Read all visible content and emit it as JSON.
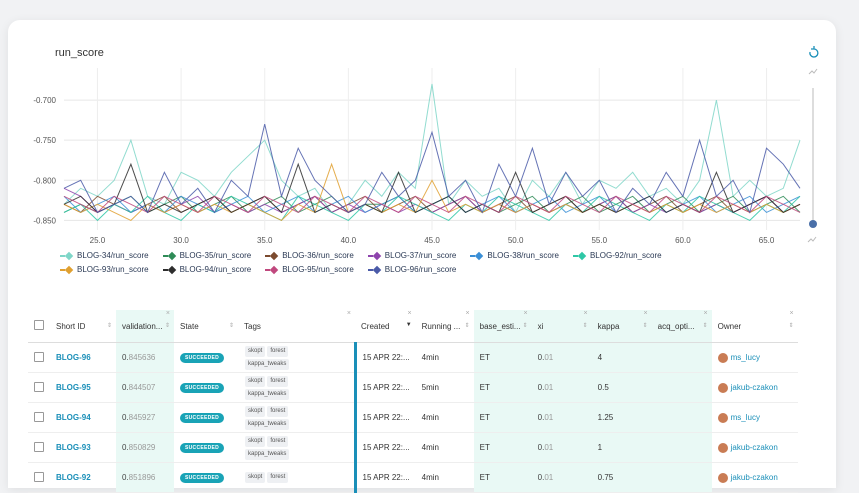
{
  "chart": {
    "title": "run_score",
    "y_ticks": [
      "-0.700",
      "-0.750",
      "-0.800",
      "-0.850"
    ],
    "x_ticks": [
      "25.0",
      "30.0",
      "35.0",
      "40.0",
      "45.0",
      "50.0",
      "55.0",
      "60.0",
      "65.0"
    ]
  },
  "legend": [
    {
      "label": "BLOG-34/run_score",
      "color": "#7fd6c8"
    },
    {
      "label": "BLOG-35/run_score",
      "color": "#2e8b57"
    },
    {
      "label": "BLOG-36/run_score",
      "color": "#7b4a2e"
    },
    {
      "label": "BLOG-37/run_score",
      "color": "#8e44ad"
    },
    {
      "label": "BLOG-38/run_score",
      "color": "#3a8fd6"
    },
    {
      "label": "BLOG-92/run_score",
      "color": "#2ec7a6"
    },
    {
      "label": "BLOG-93/run_score",
      "color": "#e0a030"
    },
    {
      "label": "BLOG-94/run_score",
      "color": "#2d2d2d"
    },
    {
      "label": "BLOG-95/run_score",
      "color": "#c0487e"
    },
    {
      "label": "BLOG-96/run_score",
      "color": "#4a5aa8"
    }
  ],
  "chart_data": {
    "type": "line",
    "title": "run_score",
    "xlabel": "",
    "ylabel": "",
    "xlim": [
      23,
      67
    ],
    "ylim": [
      -0.862,
      -0.66
    ],
    "series": [
      {
        "name": "BLOG-34/run_score",
        "color": "#7fd6c8",
        "x": [
          23,
          24,
          25,
          26,
          27,
          28,
          29,
          30,
          31,
          32,
          33,
          34,
          35,
          36,
          37,
          38,
          39,
          40,
          41,
          42,
          43,
          44,
          45,
          46,
          47,
          48,
          49,
          50,
          51,
          52,
          53,
          54,
          55,
          56,
          57,
          58,
          59,
          60,
          61,
          62,
          63,
          64,
          65,
          66,
          67
        ],
        "y": [
          -0.83,
          -0.81,
          -0.82,
          -0.8,
          -0.75,
          -0.82,
          -0.83,
          -0.79,
          -0.8,
          -0.82,
          -0.79,
          -0.77,
          -0.75,
          -0.8,
          -0.82,
          -0.81,
          -0.84,
          -0.83,
          -0.8,
          -0.82,
          -0.79,
          -0.81,
          -0.68,
          -0.83,
          -0.8,
          -0.82,
          -0.81,
          -0.84,
          -0.8,
          -0.82,
          -0.79,
          -0.83,
          -0.8,
          -0.81,
          -0.79,
          -0.82,
          -0.81,
          -0.83,
          -0.8,
          -0.7,
          -0.82,
          -0.8,
          -0.82,
          -0.81,
          -0.75
        ]
      },
      {
        "name": "BLOG-35/run_score",
        "color": "#2e8b57",
        "x": [
          23,
          24,
          25,
          26,
          27,
          28,
          29,
          30,
          31,
          32,
          33,
          34,
          35,
          36,
          37,
          38,
          39,
          40,
          41,
          42,
          43,
          44,
          45,
          46,
          47,
          48,
          49,
          50,
          51,
          52,
          53,
          54,
          55,
          56,
          57,
          58,
          59,
          60,
          61,
          62,
          63,
          64,
          65,
          66,
          67
        ],
        "y": [
          -0.84,
          -0.83,
          -0.84,
          -0.83,
          -0.82,
          -0.84,
          -0.83,
          -0.82,
          -0.84,
          -0.83,
          -0.82,
          -0.84,
          -0.83,
          -0.82,
          -0.84,
          -0.83,
          -0.82,
          -0.84,
          -0.83,
          -0.83,
          -0.82,
          -0.84,
          -0.83,
          -0.82,
          -0.84,
          -0.83,
          -0.84,
          -0.83,
          -0.82,
          -0.84,
          -0.83,
          -0.82,
          -0.84,
          -0.83,
          -0.82,
          -0.84,
          -0.83,
          -0.82,
          -0.84,
          -0.83,
          -0.82,
          -0.84,
          -0.83,
          -0.82,
          -0.84
        ]
      },
      {
        "name": "BLOG-36/run_score",
        "color": "#7b4a2e",
        "x": [
          23,
          24,
          25,
          26,
          27,
          28,
          29,
          30,
          31,
          32,
          33,
          34,
          35,
          36,
          37,
          38,
          39,
          40,
          41,
          42,
          43,
          44,
          45,
          46,
          47,
          48,
          49,
          50,
          51,
          52,
          53,
          54,
          55,
          56,
          57,
          58,
          59,
          60,
          61,
          62,
          63,
          64,
          65,
          66,
          67
        ],
        "y": [
          -0.83,
          -0.84,
          -0.82,
          -0.83,
          -0.84,
          -0.83,
          -0.82,
          -0.84,
          -0.83,
          -0.82,
          -0.84,
          -0.83,
          -0.82,
          -0.84,
          -0.83,
          -0.82,
          -0.84,
          -0.83,
          -0.82,
          -0.84,
          -0.83,
          -0.82,
          -0.84,
          -0.83,
          -0.82,
          -0.84,
          -0.83,
          -0.82,
          -0.84,
          -0.83,
          -0.82,
          -0.84,
          -0.83,
          -0.82,
          -0.84,
          -0.83,
          -0.82,
          -0.84,
          -0.83,
          -0.82,
          -0.84,
          -0.83,
          -0.82,
          -0.84,
          -0.83
        ]
      },
      {
        "name": "BLOG-37/run_score",
        "color": "#8e44ad",
        "x": [
          23,
          24,
          25,
          26,
          27,
          28,
          29,
          30,
          31,
          32,
          33,
          34,
          35,
          36,
          37,
          38,
          39,
          40,
          41,
          42,
          43,
          44,
          45,
          46,
          47,
          48,
          49,
          50,
          51,
          52,
          53,
          54,
          55,
          56,
          57,
          58,
          59,
          60,
          61,
          62,
          63,
          64,
          65,
          66,
          67
        ],
        "y": [
          -0.81,
          -0.82,
          -0.84,
          -0.83,
          -0.84,
          -0.83,
          -0.84,
          -0.83,
          -0.82,
          -0.84,
          -0.83,
          -0.84,
          -0.83,
          -0.84,
          -0.83,
          -0.82,
          -0.84,
          -0.83,
          -0.84,
          -0.83,
          -0.84,
          -0.83,
          -0.84,
          -0.83,
          -0.82,
          -0.84,
          -0.83,
          -0.84,
          -0.83,
          -0.84,
          -0.83,
          -0.84,
          -0.83,
          -0.82,
          -0.84,
          -0.83,
          -0.84,
          -0.83,
          -0.84,
          -0.83,
          -0.84,
          -0.83,
          -0.82,
          -0.84,
          -0.83
        ]
      },
      {
        "name": "BLOG-38/run_score",
        "color": "#3a8fd6",
        "x": [
          23,
          24,
          25,
          26,
          27,
          28,
          29,
          30,
          31,
          32,
          33,
          34,
          35,
          36,
          37,
          38,
          39,
          40,
          41,
          42,
          43,
          44,
          45,
          46,
          47,
          48,
          49,
          50,
          51,
          52,
          53,
          54,
          55,
          56,
          57,
          58,
          59,
          60,
          61,
          62,
          63,
          64,
          65,
          66,
          67
        ],
        "y": [
          -0.82,
          -0.84,
          -0.83,
          -0.82,
          -0.84,
          -0.83,
          -0.84,
          -0.82,
          -0.83,
          -0.84,
          -0.83,
          -0.82,
          -0.84,
          -0.83,
          -0.82,
          -0.84,
          -0.83,
          -0.82,
          -0.84,
          -0.83,
          -0.82,
          -0.84,
          -0.83,
          -0.82,
          -0.84,
          -0.83,
          -0.82,
          -0.84,
          -0.83,
          -0.82,
          -0.84,
          -0.83,
          -0.82,
          -0.84,
          -0.83,
          -0.82,
          -0.84,
          -0.83,
          -0.82,
          -0.84,
          -0.83,
          -0.82,
          -0.84,
          -0.83,
          -0.82
        ]
      },
      {
        "name": "BLOG-92/run_score",
        "color": "#2ec7a6",
        "x": [
          23,
          24,
          25,
          26,
          27,
          28,
          29,
          30,
          31,
          32,
          33,
          34,
          35,
          36,
          37,
          38,
          39,
          40,
          41,
          42,
          43,
          44,
          45,
          46,
          47,
          48,
          49,
          50,
          51,
          52,
          53,
          54,
          55,
          56,
          57,
          58,
          59,
          60,
          61,
          62,
          63,
          64,
          65,
          66,
          67
        ],
        "y": [
          -0.84,
          -0.83,
          -0.85,
          -0.83,
          -0.84,
          -0.82,
          -0.84,
          -0.85,
          -0.83,
          -0.84,
          -0.82,
          -0.83,
          -0.84,
          -0.85,
          -0.82,
          -0.83,
          -0.84,
          -0.85,
          -0.83,
          -0.84,
          -0.82,
          -0.83,
          -0.84,
          -0.85,
          -0.83,
          -0.84,
          -0.82,
          -0.83,
          -0.84,
          -0.85,
          -0.83,
          -0.84,
          -0.82,
          -0.83,
          -0.84,
          -0.85,
          -0.83,
          -0.84,
          -0.82,
          -0.83,
          -0.84,
          -0.85,
          -0.83,
          -0.84,
          -0.82
        ]
      },
      {
        "name": "BLOG-93/run_score",
        "color": "#e0a030",
        "x": [
          23,
          24,
          25,
          26,
          27,
          28,
          29,
          30,
          31,
          32,
          33,
          34,
          35,
          36,
          37,
          38,
          39,
          40,
          41,
          42,
          43,
          44,
          45,
          46,
          47,
          48,
          49,
          50,
          51,
          52,
          53,
          54,
          55,
          56,
          57,
          58,
          59,
          60,
          61,
          62,
          63,
          64,
          65,
          66,
          67
        ],
        "y": [
          -0.83,
          -0.84,
          -0.83,
          -0.84,
          -0.85,
          -0.83,
          -0.84,
          -0.83,
          -0.84,
          -0.83,
          -0.84,
          -0.83,
          -0.84,
          -0.85,
          -0.83,
          -0.84,
          -0.78,
          -0.84,
          -0.83,
          -0.84,
          -0.83,
          -0.84,
          -0.8,
          -0.84,
          -0.83,
          -0.84,
          -0.83,
          -0.84,
          -0.83,
          -0.84,
          -0.83,
          -0.84,
          -0.83,
          -0.84,
          -0.83,
          -0.84,
          -0.83,
          -0.84,
          -0.83,
          -0.84,
          -0.83,
          -0.84,
          -0.83,
          -0.84,
          -0.83
        ]
      },
      {
        "name": "BLOG-94/run_score",
        "color": "#2d2d2d",
        "x": [
          23,
          24,
          25,
          26,
          27,
          28,
          29,
          30,
          31,
          32,
          33,
          34,
          35,
          36,
          37,
          38,
          39,
          40,
          41,
          42,
          43,
          44,
          45,
          46,
          47,
          48,
          49,
          50,
          51,
          52,
          53,
          54,
          55,
          56,
          57,
          58,
          59,
          60,
          61,
          62,
          63,
          64,
          65,
          66,
          67
        ],
        "y": [
          -0.83,
          -0.82,
          -0.84,
          -0.83,
          -0.78,
          -0.84,
          -0.83,
          -0.84,
          -0.83,
          -0.82,
          -0.84,
          -0.83,
          -0.82,
          -0.84,
          -0.78,
          -0.84,
          -0.83,
          -0.84,
          -0.83,
          -0.84,
          -0.79,
          -0.84,
          -0.83,
          -0.82,
          -0.84,
          -0.83,
          -0.84,
          -0.79,
          -0.84,
          -0.83,
          -0.82,
          -0.84,
          -0.83,
          -0.84,
          -0.83,
          -0.82,
          -0.84,
          -0.83,
          -0.84,
          -0.79,
          -0.84,
          -0.83,
          -0.82,
          -0.84,
          -0.83
        ]
      },
      {
        "name": "BLOG-95/run_score",
        "color": "#c0487e",
        "x": [
          23,
          24,
          25,
          26,
          27,
          28,
          29,
          30,
          31,
          32,
          33,
          34,
          35,
          36,
          37,
          38,
          39,
          40,
          41,
          42,
          43,
          44,
          45,
          46,
          47,
          48,
          49,
          50,
          51,
          52,
          53,
          54,
          55,
          56,
          57,
          58,
          59,
          60,
          61,
          62,
          63,
          64,
          65,
          66,
          67
        ],
        "y": [
          -0.82,
          -0.83,
          -0.84,
          -0.82,
          -0.83,
          -0.84,
          -0.82,
          -0.83,
          -0.84,
          -0.82,
          -0.83,
          -0.84,
          -0.82,
          -0.83,
          -0.84,
          -0.82,
          -0.83,
          -0.84,
          -0.82,
          -0.83,
          -0.84,
          -0.82,
          -0.83,
          -0.84,
          -0.82,
          -0.83,
          -0.84,
          -0.82,
          -0.83,
          -0.84,
          -0.82,
          -0.83,
          -0.84,
          -0.82,
          -0.83,
          -0.84,
          -0.82,
          -0.83,
          -0.84,
          -0.82,
          -0.83,
          -0.84,
          -0.82,
          -0.83,
          -0.84
        ]
      },
      {
        "name": "BLOG-96/run_score",
        "color": "#4a5aa8",
        "x": [
          23,
          24,
          25,
          26,
          27,
          28,
          29,
          30,
          31,
          32,
          33,
          34,
          35,
          36,
          37,
          38,
          39,
          40,
          41,
          42,
          43,
          44,
          45,
          46,
          47,
          48,
          49,
          50,
          51,
          52,
          53,
          54,
          55,
          56,
          57,
          58,
          59,
          60,
          61,
          62,
          63,
          64,
          65,
          66,
          67
        ],
        "y": [
          -0.81,
          -0.8,
          -0.84,
          -0.83,
          -0.82,
          -0.84,
          -0.79,
          -0.83,
          -0.81,
          -0.84,
          -0.8,
          -0.82,
          -0.73,
          -0.82,
          -0.76,
          -0.8,
          -0.82,
          -0.84,
          -0.83,
          -0.79,
          -0.82,
          -0.8,
          -0.74,
          -0.82,
          -0.8,
          -0.84,
          -0.78,
          -0.82,
          -0.76,
          -0.83,
          -0.79,
          -0.82,
          -0.8,
          -0.84,
          -0.81,
          -0.83,
          -0.79,
          -0.82,
          -0.75,
          -0.82,
          -0.8,
          -0.84,
          -0.76,
          -0.78,
          -0.81
        ]
      }
    ]
  },
  "table": {
    "headers": [
      "Short ID",
      "validation...",
      "State",
      "Tags",
      "Created",
      "Running ...",
      "base_esti...",
      "xi",
      "kappa",
      "acq_opti...",
      "Owner"
    ],
    "rows": [
      {
        "id": "BLOG-96",
        "val_prefix": "0.",
        "val": "845636",
        "state": "SUCCEEDED",
        "tags": [
          "skopt",
          "forest",
          "kappa_tweaks"
        ],
        "created": "15 APR 22:...",
        "running": "4min",
        "base": "ET",
        "xi_prefix": "0.",
        "xi": "01",
        "kappa": "4",
        "acq": "",
        "owner": "ms_lucy"
      },
      {
        "id": "BLOG-95",
        "val_prefix": "0.",
        "val": "844507",
        "state": "SUCCEEDED",
        "tags": [
          "skopt",
          "forest",
          "kappa_tweaks"
        ],
        "created": "15 APR 22:...",
        "running": "5min",
        "base": "ET",
        "xi_prefix": "0.",
        "xi": "01",
        "kappa": "0.5",
        "acq": "",
        "owner": "jakub-czakon"
      },
      {
        "id": "BLOG-94",
        "val_prefix": "0.",
        "val": "845927",
        "state": "SUCCEEDED",
        "tags": [
          "skopt",
          "forest",
          "kappa_tweaks"
        ],
        "created": "15 APR 22:...",
        "running": "4min",
        "base": "ET",
        "xi_prefix": "0.",
        "xi": "01",
        "kappa": "1.25",
        "acq": "",
        "owner": "ms_lucy"
      },
      {
        "id": "BLOG-93",
        "val_prefix": "0.",
        "val": "850829",
        "state": "SUCCEEDED",
        "tags": [
          "skopt",
          "forest",
          "kappa_tweaks"
        ],
        "created": "15 APR 22:...",
        "running": "4min",
        "base": "ET",
        "xi_prefix": "0.",
        "xi": "01",
        "kappa": "1",
        "acq": "",
        "owner": "jakub-czakon"
      },
      {
        "id": "BLOG-92",
        "val_prefix": "0.",
        "val": "851896",
        "state": "SUCCEEDED",
        "tags": [
          "skopt",
          "forest"
        ],
        "created": "15 APR 22:...",
        "running": "4min",
        "base": "ET",
        "xi_prefix": "0.",
        "xi": "01",
        "kappa": "0.75",
        "acq": "",
        "owner": "jakub-czakon"
      }
    ]
  }
}
